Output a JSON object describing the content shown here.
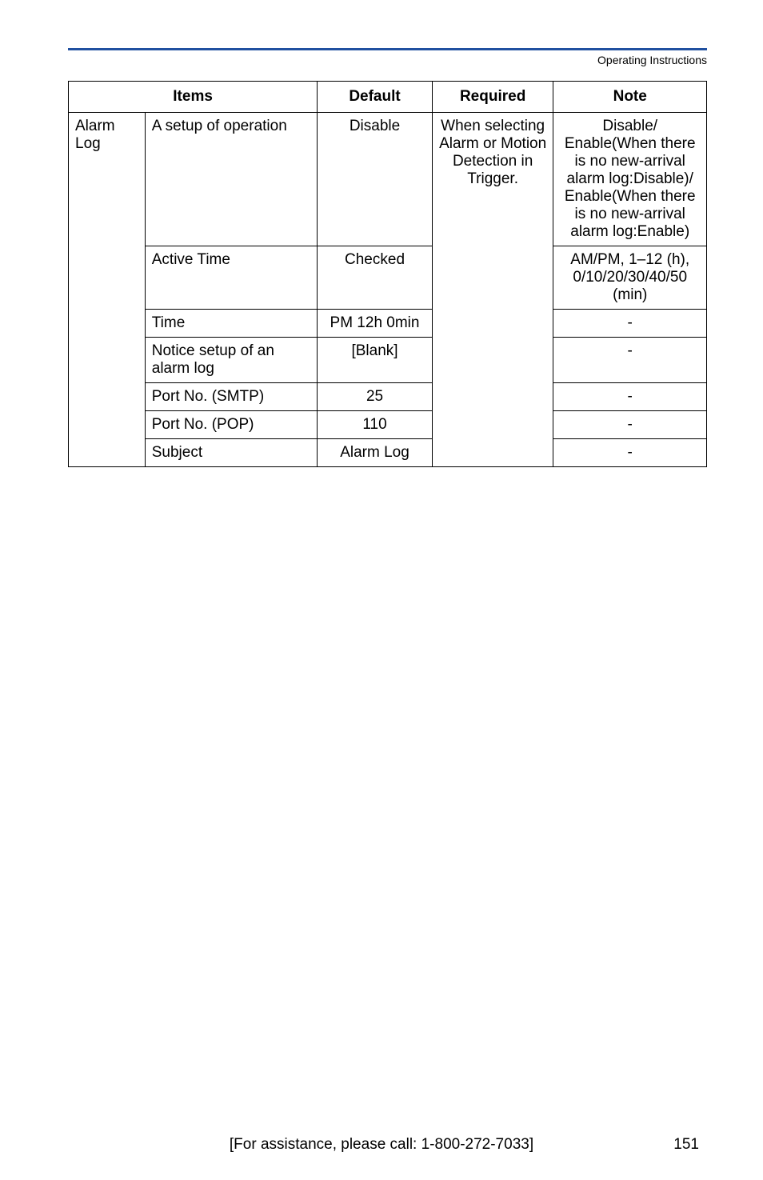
{
  "header": {
    "label": "Operating Instructions"
  },
  "table": {
    "headers": {
      "items": "Items",
      "default": "Default",
      "required": "Required",
      "note": "Note"
    },
    "group_label": "Alarm Log",
    "required_text": "When selecting Alarm or Motion Detection in Trigger.",
    "rows": [
      {
        "item": "A setup of operation",
        "default": "Disable",
        "note": "Disable/\nEnable(When there is no new-arrival alarm log:Disable)/\nEnable(When there is no new-arrival alarm log:Enable)"
      },
      {
        "item": "Active Time",
        "default": "Checked",
        "note": "AM/PM, 1–12 (h), 0/10/20/30/40/50 (min)"
      },
      {
        "item": "Time",
        "default": "PM 12h 0min",
        "note": "-"
      },
      {
        "item": "Notice setup of an alarm log",
        "default": "[Blank]",
        "note": "-"
      },
      {
        "item": "Port No. (SMTP)",
        "default": "25",
        "note": "-"
      },
      {
        "item": "Port No. (POP)",
        "default": "110",
        "note": "-"
      },
      {
        "item": "Subject",
        "default": "Alarm Log",
        "note": "-"
      }
    ]
  },
  "footer": {
    "assist": "[For assistance, please call: 1-800-272-7033]",
    "page": "151"
  },
  "colors": {
    "rule": "#2050a0",
    "text": "#000000",
    "bg": "#ffffff"
  }
}
